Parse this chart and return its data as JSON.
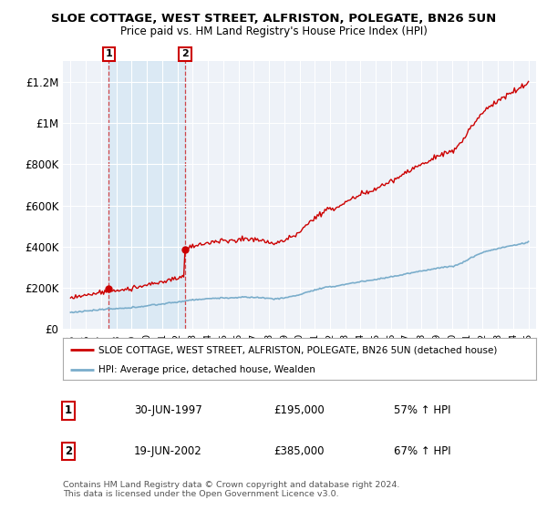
{
  "title": "SLOE COTTAGE, WEST STREET, ALFRISTON, POLEGATE, BN26 5UN",
  "subtitle": "Price paid vs. HM Land Registry's House Price Index (HPI)",
  "legend_red": "SLOE COTTAGE, WEST STREET, ALFRISTON, POLEGATE, BN26 5UN (detached house)",
  "legend_blue": "HPI: Average price, detached house, Wealden",
  "footnote": "Contains HM Land Registry data © Crown copyright and database right 2024.\nThis data is licensed under the Open Government Licence v3.0.",
  "sale1_date": "30-JUN-1997",
  "sale1_price": "£195,000",
  "sale1_hpi": "57% ↑ HPI",
  "sale2_date": "19-JUN-2002",
  "sale2_price": "£385,000",
  "sale2_hpi": "67% ↑ HPI",
  "sale1_label": "1",
  "sale2_label": "2",
  "sale1_x": 1997.5,
  "sale1_y": 195000,
  "sale2_x": 2002.5,
  "sale2_y": 385000,
  "ylim": [
    0,
    1300000
  ],
  "xlim": [
    1994.5,
    2025.5
  ],
  "yticks": [
    0,
    200000,
    400000,
    600000,
    800000,
    1000000,
    1200000
  ],
  "ytick_labels": [
    "£0",
    "£200K",
    "£400K",
    "£600K",
    "£800K",
    "£1M",
    "£1.2M"
  ],
  "xticks": [
    1995,
    1996,
    1997,
    1998,
    1999,
    2000,
    2001,
    2002,
    2003,
    2004,
    2005,
    2006,
    2007,
    2008,
    2009,
    2010,
    2011,
    2012,
    2013,
    2014,
    2015,
    2016,
    2017,
    2018,
    2019,
    2020,
    2021,
    2022,
    2023,
    2024,
    2025
  ],
  "background_plot": "#eef2f8",
  "background_fig": "#ffffff",
  "red_color": "#cc0000",
  "blue_color": "#7aadcb",
  "sale_vline_color": "#cc0000",
  "sale_bg_color": "#d8e8f4",
  "grid_color": "#ffffff"
}
